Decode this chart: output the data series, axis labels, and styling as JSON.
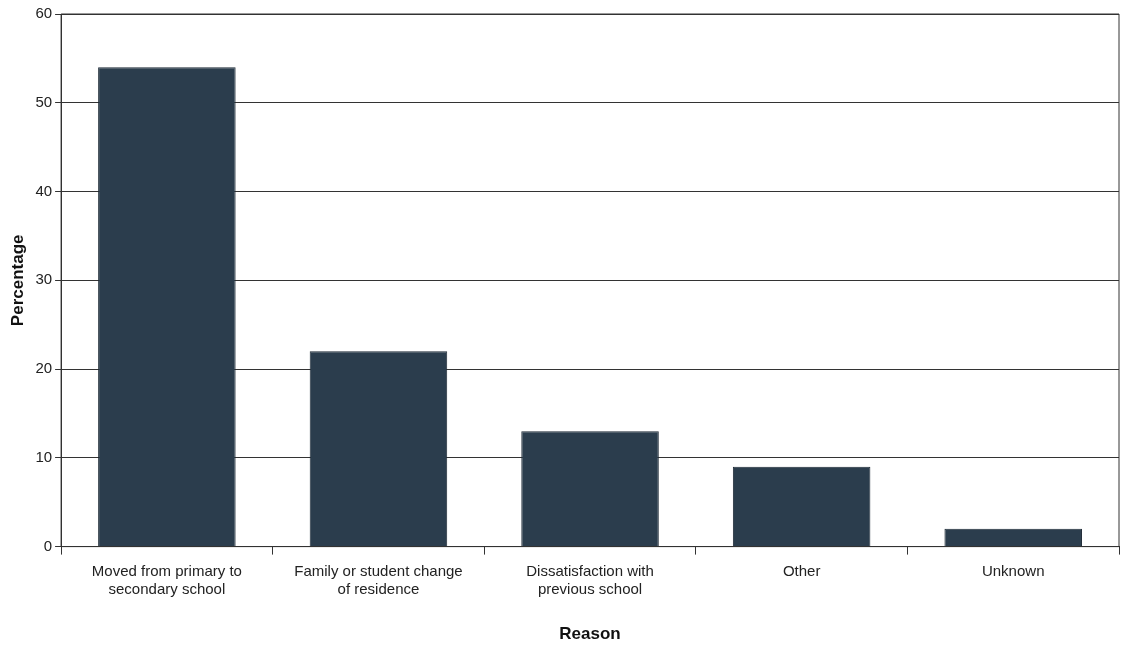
{
  "chart_data": {
    "type": "bar",
    "xlabel": "Reason",
    "ylabel": "Percentage",
    "categories": [
      "Moved from primary to secondary school",
      "Family or student change of residence",
      "Dissatisfaction with previous school",
      "Other",
      "Unknown"
    ],
    "values": [
      54,
      22,
      13,
      9,
      2
    ],
    "color": "#2b3d4d",
    "ylim": [
      0,
      60
    ],
    "yticks": [
      0,
      10,
      20,
      30,
      40,
      50,
      60
    ],
    "grid": "y",
    "legend": false
  }
}
